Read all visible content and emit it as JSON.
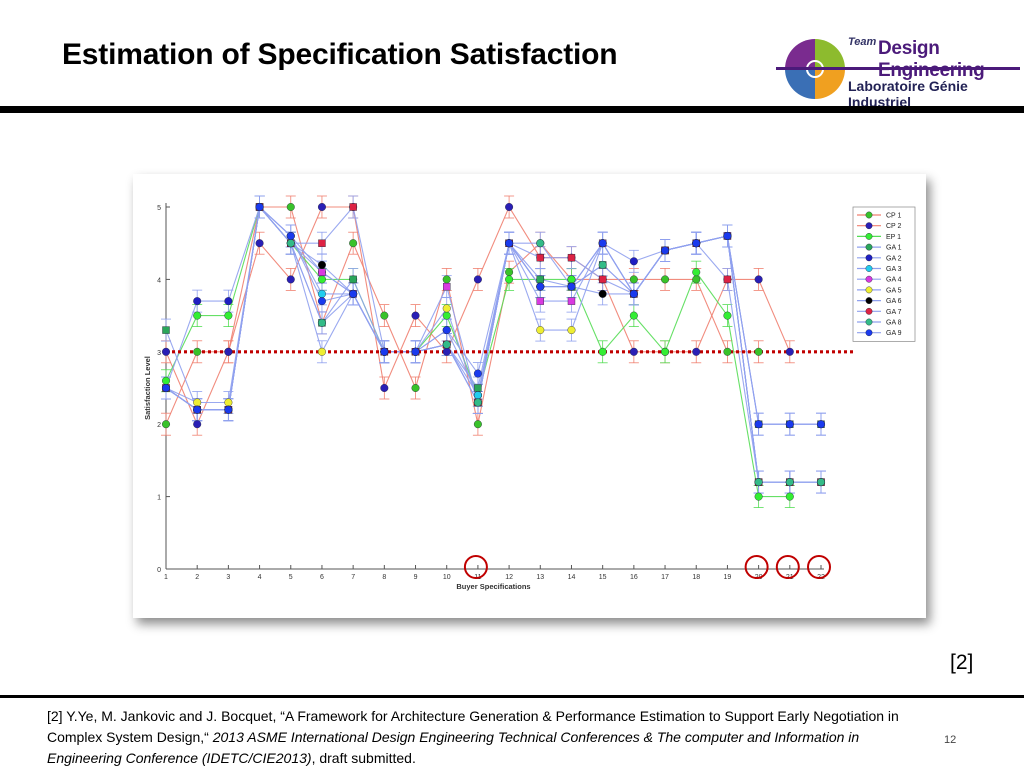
{
  "slide": {
    "title": "Estimation of Specification Satisfaction",
    "ref_marker": "[2]",
    "page_number": "12",
    "citation": {
      "part1": "[2] Y.Ye, M. Jankovic and J. Bocquet, “A Framework for Architecture Generation & Performance Estimation to Support Early Negotiation in Complex System Design,“ ",
      "italic": "2013 ASME International Design Engineering Technical Conferences & The computer and Information in Engineering Conference (IDETC/CIE2013)",
      "part2": ", draft submitted."
    }
  },
  "logo": {
    "team": "Team",
    "name": "Design Engineering",
    "lab": "Laboratoire Génie Industriel",
    "colors": [
      "#7a2b8f",
      "#8dbb2e",
      "#3a6fb5",
      "#f0a020"
    ]
  },
  "chart_data": {
    "type": "line",
    "xlabel": "Buyer Specifications",
    "ylabel": "Satisfaction Level",
    "x": [
      1,
      2,
      3,
      4,
      5,
      6,
      7,
      8,
      9,
      10,
      11,
      12,
      13,
      14,
      15,
      16,
      17,
      18,
      19,
      20,
      21,
      22
    ],
    "xlim": [
      1,
      22
    ],
    "ylim": [
      0,
      5
    ],
    "yticks": [
      0,
      1,
      2,
      3,
      4,
      5
    ],
    "grid": false,
    "legend_position": "top-right",
    "threshold": {
      "y": 3.0,
      "color": "#c00000",
      "style": "dotted"
    },
    "circled_x": [
      11,
      20,
      21,
      22
    ],
    "series": [
      {
        "name": "CP 1",
        "line_color": "#f08070",
        "marker_color": "#39c22a",
        "values": [
          2.0,
          3.0,
          3.0,
          5.0,
          5.0,
          3.4,
          4.5,
          3.5,
          2.5,
          4.0,
          2.0,
          4.1,
          4.5,
          4.0,
          4.0,
          4.0,
          4.0,
          4.0,
          3.0,
          3.0,
          null,
          null
        ]
      },
      {
        "name": "CP 2",
        "line_color": "#f08070",
        "marker_color": "#2a1fb5",
        "values": [
          3.0,
          2.0,
          3.0,
          4.5,
          4.0,
          5.0,
          5.0,
          2.5,
          3.5,
          3.0,
          4.0,
          5.0,
          4.3,
          4.3,
          4.0,
          3.0,
          3.0,
          3.0,
          4.0,
          4.0,
          3.0,
          null
        ]
      },
      {
        "name": "EP 1",
        "line_color": "#55dd55",
        "marker_color": "#33ee33",
        "values": [
          2.6,
          3.5,
          3.5,
          5.0,
          4.5,
          4.0,
          4.0,
          3.0,
          3.0,
          3.5,
          2.4,
          4.0,
          4.0,
          4.0,
          3.0,
          3.5,
          3.0,
          4.1,
          3.5,
          1.0,
          1.0,
          null
        ]
      },
      {
        "name": "GA 1",
        "line_color": "#8fa0ee",
        "marker_color": "#2aa65a",
        "values": [
          3.3,
          2.2,
          2.2,
          5.0,
          4.5,
          3.4,
          4.0,
          3.0,
          3.0,
          3.1,
          2.5,
          4.5,
          4.0,
          3.9,
          4.2,
          3.8,
          4.4,
          4.5,
          4.6,
          2.0,
          2.0,
          2.0
        ]
      },
      {
        "name": "GA 2",
        "line_color": "#8fa0ee",
        "marker_color": "#1f1fc2",
        "values": [
          2.5,
          3.7,
          3.7,
          5.0,
          4.6,
          4.1,
          3.8,
          3.0,
          3.0,
          3.3,
          2.4,
          4.5,
          3.9,
          3.9,
          4.5,
          4.25,
          4.4,
          4.5,
          4.6,
          2.0,
          2.0,
          2.0
        ]
      },
      {
        "name": "GA 3",
        "line_color": "#8fa0ee",
        "marker_color": "#22ccee",
        "values": [
          2.5,
          2.2,
          2.2,
          5.0,
          4.6,
          3.8,
          3.8,
          3.0,
          3.0,
          3.1,
          2.4,
          4.5,
          3.9,
          3.9,
          4.5,
          3.8,
          4.4,
          4.5,
          4.6,
          1.2,
          1.2,
          1.2
        ]
      },
      {
        "name": "GA 4",
        "line_color": "#8fa0ee",
        "marker_color": "#d93ae0",
        "values": [
          2.5,
          2.2,
          2.2,
          5.0,
          4.5,
          4.1,
          3.8,
          3.0,
          3.0,
          3.9,
          2.3,
          4.5,
          3.7,
          3.7,
          4.5,
          3.8,
          4.4,
          4.5,
          4.6,
          1.2,
          1.2,
          1.2
        ]
      },
      {
        "name": "GA 5",
        "line_color": "#8fa0ee",
        "marker_color": "#eeee33",
        "values": [
          2.5,
          2.3,
          2.3,
          5.0,
          4.5,
          3.0,
          3.8,
          3.0,
          3.0,
          3.6,
          2.3,
          4.5,
          3.3,
          3.3,
          4.5,
          3.8,
          4.4,
          4.5,
          4.6,
          1.2,
          1.2,
          1.2
        ]
      },
      {
        "name": "GA 6",
        "line_color": "#8fa0ee",
        "marker_color": "#000000",
        "values": [
          2.5,
          2.2,
          2.2,
          5.0,
          4.5,
          4.2,
          3.8,
          3.0,
          3.0,
          3.1,
          2.3,
          4.5,
          3.9,
          3.9,
          3.8,
          3.8,
          4.4,
          4.5,
          4.6,
          1.2,
          1.2,
          1.2
        ]
      },
      {
        "name": "GA 7",
        "line_color": "#8fa0ee",
        "marker_color": "#dd2244",
        "values": [
          2.5,
          2.2,
          2.2,
          5.0,
          4.5,
          4.5,
          5.0,
          3.0,
          3.0,
          3.1,
          2.3,
          4.5,
          4.3,
          4.3,
          4.0,
          3.8,
          4.4,
          4.5,
          4.0,
          1.2,
          1.2,
          1.2
        ]
      },
      {
        "name": "GA 8",
        "line_color": "#8fa0ee",
        "marker_color": "#33bb88",
        "values": [
          2.5,
          2.2,
          2.2,
          5.0,
          4.5,
          3.4,
          3.8,
          3.0,
          3.0,
          3.1,
          2.3,
          4.5,
          4.5,
          3.9,
          4.2,
          3.8,
          4.4,
          4.5,
          4.6,
          1.2,
          1.2,
          1.2
        ]
      },
      {
        "name": "GA 9",
        "line_color": "#8fa0ee",
        "marker_color": "#1a3aee",
        "values": [
          2.5,
          2.2,
          2.2,
          5.0,
          4.6,
          3.7,
          3.8,
          3.0,
          3.0,
          3.3,
          2.7,
          4.5,
          3.9,
          3.9,
          4.5,
          3.8,
          4.4,
          4.5,
          4.6,
          2.0,
          2.0,
          2.0
        ]
      }
    ]
  }
}
